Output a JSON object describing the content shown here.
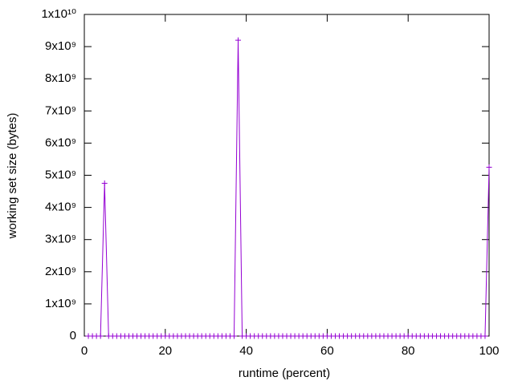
{
  "chart_data": {
    "type": "line",
    "xlabel": "runtime (percent)",
    "ylabel": "working set size (bytes)",
    "x": [
      1,
      2,
      3,
      4,
      5,
      6,
      7,
      8,
      9,
      10,
      11,
      12,
      13,
      14,
      15,
      16,
      17,
      18,
      19,
      20,
      21,
      22,
      23,
      24,
      25,
      26,
      27,
      28,
      29,
      30,
      31,
      32,
      33,
      34,
      35,
      36,
      37,
      38,
      39,
      40,
      41,
      42,
      43,
      44,
      45,
      46,
      47,
      48,
      49,
      50,
      51,
      52,
      53,
      54,
      55,
      56,
      57,
      58,
      59,
      60,
      61,
      62,
      63,
      64,
      65,
      66,
      67,
      68,
      69,
      70,
      71,
      72,
      73,
      74,
      75,
      76,
      77,
      78,
      79,
      80,
      81,
      82,
      83,
      84,
      85,
      86,
      87,
      88,
      89,
      90,
      91,
      92,
      93,
      94,
      95,
      96,
      97,
      98,
      99,
      100
    ],
    "series": [
      {
        "color": "#9400d3",
        "values": [
          0,
          0,
          0,
          0,
          4750000000,
          0,
          0,
          0,
          0,
          0,
          0,
          0,
          0,
          0,
          0,
          0,
          0,
          0,
          0,
          0,
          0,
          0,
          0,
          0,
          0,
          0,
          0,
          0,
          0,
          0,
          0,
          0,
          0,
          0,
          0,
          0,
          0,
          9200000000,
          0,
          0,
          0,
          0,
          0,
          0,
          0,
          0,
          0,
          0,
          0,
          0,
          0,
          0,
          0,
          0,
          0,
          0,
          0,
          0,
          0,
          0,
          0,
          0,
          0,
          0,
          0,
          0,
          0,
          0,
          0,
          0,
          0,
          0,
          0,
          0,
          0,
          0,
          0,
          0,
          0,
          0,
          0,
          0,
          0,
          0,
          0,
          0,
          0,
          0,
          0,
          0,
          0,
          0,
          0,
          0,
          0,
          0,
          0,
          0,
          0,
          5250000000
        ]
      }
    ],
    "xlim": [
      0,
      100
    ],
    "xticks": [
      0,
      20,
      40,
      60,
      80,
      100
    ],
    "ylim": [
      0,
      10000000000
    ],
    "yticks": [
      0,
      {
        "value": 1000000000,
        "label": "1x10⁹"
      },
      {
        "value": 2000000000,
        "label": "2x10⁹"
      },
      {
        "value": 3000000000,
        "label": "3x10⁹"
      },
      {
        "value": 4000000000,
        "label": "4x10⁹"
      },
      {
        "value": 5000000000,
        "label": "5x10⁹"
      },
      {
        "value": 6000000000,
        "label": "6x10⁹"
      },
      {
        "value": 7000000000,
        "label": "7x10⁹"
      },
      {
        "value": 8000000000,
        "label": "8x10⁹"
      },
      {
        "value": 9000000000,
        "label": "9x10⁹"
      },
      {
        "value": 10000000000,
        "label": "1x10¹⁰"
      }
    ],
    "grid": false
  }
}
